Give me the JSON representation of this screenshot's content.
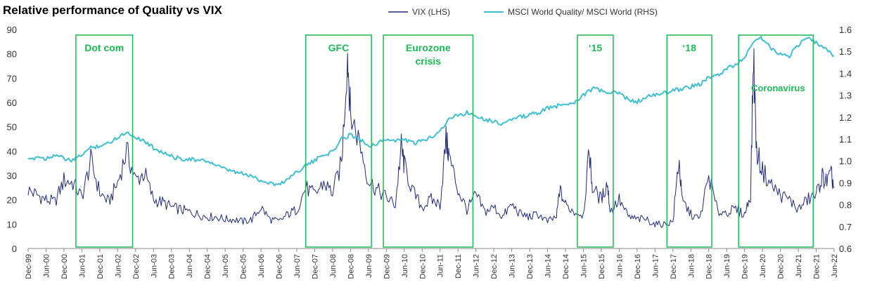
{
  "chart_data": {
    "type": "line",
    "title": "Relative performance of Quality vs VIX",
    "legend": {
      "position": "top-right"
    },
    "colors": {
      "vix": "#1f2a7a",
      "quality": "#3fbfcf",
      "box": "#1db954"
    },
    "y_left": {
      "min": 0,
      "max": 90,
      "ticks": [
        "0",
        "10",
        "20",
        "30",
        "40",
        "50",
        "60",
        "70",
        "80",
        "90"
      ]
    },
    "y_right": {
      "min": 0.6,
      "max": 1.6,
      "ticks": [
        "0.6",
        "0.7",
        "0.8",
        "0.9",
        "1.0",
        "1.1",
        "1.2",
        "1.3",
        "1.4",
        "1.5",
        "1.6"
      ]
    },
    "x_range": [
      "1999-12",
      "2022-06"
    ],
    "x_ticks": [
      "Dec-99",
      "Jun-00",
      "Dec-00",
      "Jun-01",
      "Dec-01",
      "Jun-02",
      "Dec-02",
      "Jun-03",
      "Dec-03",
      "Jun-04",
      "Dec-04",
      "Jun-05",
      "Dec-05",
      "Jun-06",
      "Dec-06",
      "Jun-07",
      "Dec-07",
      "Jun-08",
      "Dec-08",
      "Jun-09",
      "Dec-09",
      "Jun-10",
      "Dec-10",
      "Jun-11",
      "Dec-11",
      "Jun-12",
      "Dec-12",
      "Jun-13",
      "Dec-13",
      "Jun-14",
      "Dec-14",
      "Jun-15",
      "Dec-15",
      "Jun-16",
      "Dec-16",
      "Jun-17",
      "Dec-17",
      "Jun-18",
      "Dec-18",
      "Jun-19",
      "Dec-19",
      "Jun-20",
      "Dec-20",
      "Jun-21",
      "Dec-21",
      "Jun-22"
    ],
    "series": [
      {
        "name": "VIX (LHS)",
        "axis": "left",
        "points": [
          [
            "1999-12",
            24
          ],
          [
            "2000-03",
            22
          ],
          [
            "2000-06",
            20
          ],
          [
            "2000-09",
            19
          ],
          [
            "2000-12",
            28
          ],
          [
            "2001-03",
            27
          ],
          [
            "2001-06",
            21
          ],
          [
            "2001-09",
            36
          ],
          [
            "2001-12",
            23
          ],
          [
            "2002-03",
            19
          ],
          [
            "2002-06",
            27
          ],
          [
            "2002-09",
            40
          ],
          [
            "2002-12",
            28
          ],
          [
            "2003-03",
            31
          ],
          [
            "2003-06",
            20
          ],
          [
            "2003-09",
            19
          ],
          [
            "2003-12",
            17
          ],
          [
            "2004-03",
            16
          ],
          [
            "2004-06",
            15
          ],
          [
            "2004-09",
            14
          ],
          [
            "2004-12",
            13
          ],
          [
            "2005-03",
            13
          ],
          [
            "2005-06",
            12
          ],
          [
            "2005-09",
            12
          ],
          [
            "2005-12",
            11
          ],
          [
            "2006-03",
            12
          ],
          [
            "2006-06",
            17
          ],
          [
            "2006-09",
            12
          ],
          [
            "2006-12",
            11
          ],
          [
            "2007-03",
            14
          ],
          [
            "2007-06",
            16
          ],
          [
            "2007-09",
            25
          ],
          [
            "2007-12",
            22
          ],
          [
            "2008-03",
            27
          ],
          [
            "2008-06",
            23
          ],
          [
            "2008-09",
            35
          ],
          [
            "2008-11",
            80
          ],
          [
            "2008-12",
            55
          ],
          [
            "2009-03",
            44
          ],
          [
            "2009-06",
            28
          ],
          [
            "2009-09",
            24
          ],
          [
            "2009-12",
            21
          ],
          [
            "2010-03",
            18
          ],
          [
            "2010-05",
            42
          ],
          [
            "2010-06",
            34
          ],
          [
            "2010-09",
            23
          ],
          [
            "2010-12",
            17
          ],
          [
            "2011-03",
            20
          ],
          [
            "2011-06",
            18
          ],
          [
            "2011-08",
            45
          ],
          [
            "2011-09",
            38
          ],
          [
            "2011-12",
            24
          ],
          [
            "2012-03",
            16
          ],
          [
            "2012-06",
            22
          ],
          [
            "2012-09",
            15
          ],
          [
            "2012-12",
            17
          ],
          [
            "2013-03",
            13
          ],
          [
            "2013-06",
            18
          ],
          [
            "2013-09",
            14
          ],
          [
            "2013-12",
            13
          ],
          [
            "2014-03",
            14
          ],
          [
            "2014-06",
            11
          ],
          [
            "2014-09",
            13
          ],
          [
            "2014-10",
            24
          ],
          [
            "2014-12",
            18
          ],
          [
            "2015-03",
            15
          ],
          [
            "2015-06",
            14
          ],
          [
            "2015-08",
            40
          ],
          [
            "2015-09",
            25
          ],
          [
            "2015-12",
            20
          ],
          [
            "2016-02",
            27
          ],
          [
            "2016-03",
            15
          ],
          [
            "2016-06",
            20
          ],
          [
            "2016-09",
            13
          ],
          [
            "2016-12",
            12
          ],
          [
            "2017-03",
            12
          ],
          [
            "2017-06",
            10
          ],
          [
            "2017-09",
            10
          ],
          [
            "2017-12",
            11
          ],
          [
            "2018-02",
            37
          ],
          [
            "2018-03",
            20
          ],
          [
            "2018-06",
            14
          ],
          [
            "2018-09",
            12
          ],
          [
            "2018-12",
            30
          ],
          [
            "2019-03",
            15
          ],
          [
            "2019-06",
            15
          ],
          [
            "2019-09",
            16
          ],
          [
            "2019-12",
            14
          ],
          [
            "2020-02",
            22
          ],
          [
            "2020-03",
            80
          ],
          [
            "2020-04",
            40
          ],
          [
            "2020-06",
            32
          ],
          [
            "2020-09",
            26
          ],
          [
            "2020-12",
            22
          ],
          [
            "2021-03",
            20
          ],
          [
            "2021-06",
            16
          ],
          [
            "2021-09",
            20
          ],
          [
            "2021-12",
            22
          ],
          [
            "2022-02",
            30
          ],
          [
            "2022-03",
            27
          ],
          [
            "2022-05",
            30
          ],
          [
            "2022-06",
            25
          ]
        ]
      },
      {
        "name": "MSCI World Quality/ MSCI World (RHS)",
        "axis": "right",
        "points": [
          [
            "1999-12",
            1.0
          ],
          [
            "2000-03",
            1.02
          ],
          [
            "2000-06",
            1.01
          ],
          [
            "2000-09",
            1.03
          ],
          [
            "2000-12",
            1.01
          ],
          [
            "2001-03",
            1.0
          ],
          [
            "2001-06",
            1.03
          ],
          [
            "2001-09",
            1.06
          ],
          [
            "2001-12",
            1.07
          ],
          [
            "2002-03",
            1.08
          ],
          [
            "2002-06",
            1.11
          ],
          [
            "2002-09",
            1.13
          ],
          [
            "2002-12",
            1.11
          ],
          [
            "2003-03",
            1.09
          ],
          [
            "2003-06",
            1.06
          ],
          [
            "2003-09",
            1.04
          ],
          [
            "2003-12",
            1.02
          ],
          [
            "2004-03",
            1.01
          ],
          [
            "2004-06",
            1.01
          ],
          [
            "2004-09",
            1.0
          ],
          [
            "2004-12",
            1.0
          ],
          [
            "2005-03",
            0.98
          ],
          [
            "2005-06",
            0.96
          ],
          [
            "2005-09",
            0.95
          ],
          [
            "2005-12",
            0.94
          ],
          [
            "2006-03",
            0.93
          ],
          [
            "2006-06",
            0.91
          ],
          [
            "2006-09",
            0.9
          ],
          [
            "2006-12",
            0.89
          ],
          [
            "2007-03",
            0.92
          ],
          [
            "2007-06",
            0.95
          ],
          [
            "2007-09",
            0.98
          ],
          [
            "2007-12",
            1.0
          ],
          [
            "2008-03",
            1.03
          ],
          [
            "2008-06",
            1.04
          ],
          [
            "2008-09",
            1.1
          ],
          [
            "2008-12",
            1.12
          ],
          [
            "2009-03",
            1.1
          ],
          [
            "2009-06",
            1.07
          ],
          [
            "2009-09",
            1.08
          ],
          [
            "2009-12",
            1.1
          ],
          [
            "2010-03",
            1.09
          ],
          [
            "2010-06",
            1.1
          ],
          [
            "2010-09",
            1.08
          ],
          [
            "2010-12",
            1.09
          ],
          [
            "2011-03",
            1.11
          ],
          [
            "2011-06",
            1.14
          ],
          [
            "2011-09",
            1.19
          ],
          [
            "2011-12",
            1.21
          ],
          [
            "2012-03",
            1.22
          ],
          [
            "2012-06",
            1.21
          ],
          [
            "2012-09",
            1.19
          ],
          [
            "2012-12",
            1.18
          ],
          [
            "2013-03",
            1.17
          ],
          [
            "2013-06",
            1.19
          ],
          [
            "2013-09",
            1.2
          ],
          [
            "2013-12",
            1.21
          ],
          [
            "2014-03",
            1.22
          ],
          [
            "2014-06",
            1.24
          ],
          [
            "2014-09",
            1.25
          ],
          [
            "2014-12",
            1.26
          ],
          [
            "2015-03",
            1.27
          ],
          [
            "2015-06",
            1.3
          ],
          [
            "2015-09",
            1.33
          ],
          [
            "2015-12",
            1.32
          ],
          [
            "2016-03",
            1.31
          ],
          [
            "2016-06",
            1.31
          ],
          [
            "2016-09",
            1.28
          ],
          [
            "2016-12",
            1.27
          ],
          [
            "2017-03",
            1.29
          ],
          [
            "2017-06",
            1.3
          ],
          [
            "2017-09",
            1.31
          ],
          [
            "2017-12",
            1.32
          ],
          [
            "2018-03",
            1.33
          ],
          [
            "2018-06",
            1.34
          ],
          [
            "2018-09",
            1.35
          ],
          [
            "2018-12",
            1.38
          ],
          [
            "2019-03",
            1.39
          ],
          [
            "2019-06",
            1.42
          ],
          [
            "2019-09",
            1.44
          ],
          [
            "2019-12",
            1.47
          ],
          [
            "2020-03",
            1.55
          ],
          [
            "2020-06",
            1.56
          ],
          [
            "2020-09",
            1.51
          ],
          [
            "2020-12",
            1.49
          ],
          [
            "2021-03",
            1.48
          ],
          [
            "2021-06",
            1.53
          ],
          [
            "2021-09",
            1.56
          ],
          [
            "2021-12",
            1.54
          ],
          [
            "2022-03",
            1.51
          ],
          [
            "2022-06",
            1.48
          ]
        ]
      }
    ],
    "annotations": [
      {
        "label": "Dot com",
        "start": "2001-04",
        "end": "2002-11",
        "lines": [
          "Dot com"
        ]
      },
      {
        "label": "GFC",
        "start": "2007-09",
        "end": "2009-07",
        "lines": [
          "GFC"
        ]
      },
      {
        "label": "Eurozone crisis",
        "start": "2009-11",
        "end": "2012-05",
        "lines": [
          "Eurozone",
          "crisis"
        ]
      },
      {
        "label": "'15",
        "start": "2015-04",
        "end": "2016-04",
        "lines": [
          "‘15"
        ]
      },
      {
        "label": "'18",
        "start": "2017-10",
        "end": "2019-01",
        "lines": [
          "‘18"
        ]
      },
      {
        "label": "Coronavirus",
        "start": "2019-10",
        "end": "2021-11",
        "lines": [
          "Coronavirus"
        ]
      }
    ]
  }
}
